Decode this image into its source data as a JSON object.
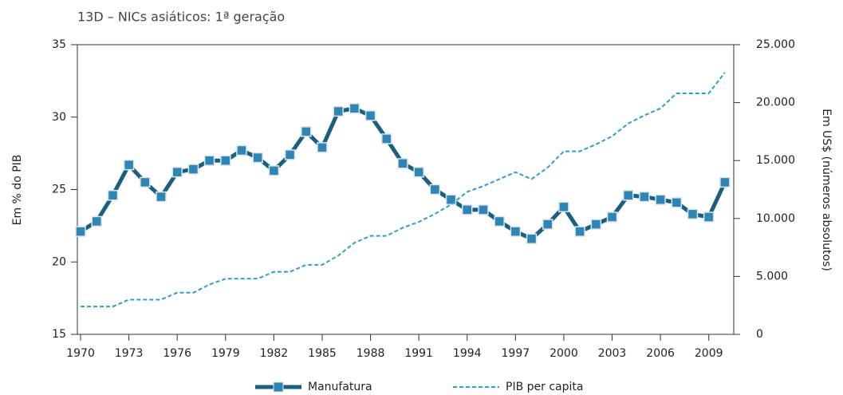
{
  "chart_data": {
    "type": "line",
    "title": "13D – NICs asiáticos: 1ª geração",
    "y_label": "Em % do PIB",
    "y2_label": "Em US$ (números absolutos)",
    "x": [
      1970,
      1971,
      1972,
      1973,
      1974,
      1975,
      1976,
      1977,
      1978,
      1979,
      1980,
      1981,
      1982,
      1983,
      1984,
      1985,
      1986,
      1987,
      1988,
      1989,
      1990,
      1991,
      1992,
      1993,
      1994,
      1995,
      1996,
      1997,
      1998,
      1999,
      2000,
      2001,
      2002,
      2003,
      2004,
      2005,
      2006,
      2007,
      2008,
      2009,
      2010
    ],
    "xlim": [
      1969.8,
      2010.55
    ],
    "xticks": [
      1970,
      1973,
      1976,
      1979,
      1982,
      1985,
      1988,
      1991,
      1994,
      1997,
      2000,
      2003,
      2006,
      2009
    ],
    "ylim": [
      15,
      35
    ],
    "yticks": [
      15,
      20,
      25,
      30,
      35
    ],
    "y2lim": [
      0,
      25000
    ],
    "y2ticks": [
      0,
      {
        "value": 5000,
        "label": "5.000"
      },
      {
        "value": 10000,
        "label": "10.000"
      },
      {
        "value": 15000,
        "label": "15.000"
      },
      {
        "value": 20000,
        "label": "20.000"
      },
      {
        "value": 25000,
        "label": "25.000"
      }
    ],
    "series": [
      {
        "name": "Manufatura",
        "color": "#1a5e80",
        "marker_color": "#2f86b2",
        "values": [
          22.1,
          22.8,
          24.6,
          26.7,
          25.5,
          24.5,
          26.2,
          26.4,
          27.0,
          27.0,
          27.7,
          27.2,
          26.3,
          27.4,
          29.0,
          27.9,
          30.4,
          30.6,
          30.1,
          28.5,
          26.8,
          26.2,
          25.0,
          24.3,
          23.6,
          23.6,
          22.8,
          22.1,
          21.6,
          22.6,
          23.8,
          22.1,
          22.6,
          23.1,
          24.6,
          24.5,
          24.3,
          24.1,
          23.3,
          23.1,
          25.5
        ]
      },
      {
        "name": "PIB per capita",
        "color": "#2aa0c8",
        "axis": "y2",
        "dashed": true,
        "values": [
          2400,
          2400,
          2400,
          3000,
          3000,
          3000,
          3600,
          3600,
          4300,
          4800,
          4800,
          4800,
          5400,
          5400,
          6000,
          6000,
          6800,
          7900,
          8500,
          8500,
          9200,
          9700,
          10400,
          11200,
          12300,
          12800,
          13400,
          14000,
          13400,
          14400,
          15800,
          15800,
          16400,
          17100,
          18200,
          18900,
          19500,
          20800,
          20800,
          20800,
          22600
        ]
      }
    ]
  }
}
